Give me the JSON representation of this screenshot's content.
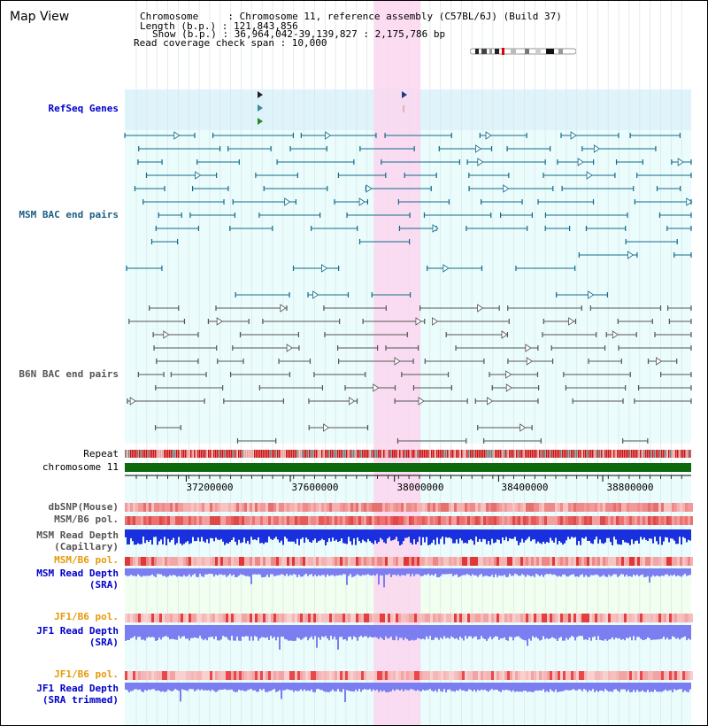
{
  "view": {
    "title": "Map View",
    "info_lines": [
      "Chromosome     : Chromosome 11, reference assembly (C57BL/6J) (Build 37)",
      "Length (b.p.) : 121,843,856",
      "Show (b.p.) : 36,964,042-39,139,827 : 2,175,786 bp",
      "Read coverage check span : 10,000"
    ]
  },
  "tracks": {
    "refseq": "RefSeq Genes",
    "msm_bac": "MSM BAC end pairs",
    "b6n_bac": "B6N BAC end pairs",
    "repeat": "Repeat",
    "chromosome": "chromosome 11",
    "dbsnp": "dbSNP(Mouse)",
    "msm_b6_pol": "MSM/B6 pol.",
    "msm_read_depth": "MSM Read Depth",
    "capillary": "(Capillary)",
    "msm_b6_pol_2": "MSM/B6 pol.",
    "msm_read_depth_sra": "MSM Read Depth",
    "sra": "(SRA)",
    "jf1_b6_pol": "JF1/B6 pol.",
    "jf1_read_depth": "JF1 Read Depth",
    "sra_2": "(SRA)",
    "jf1_b6_pol_2": "JF1/B6 pol.",
    "jf1_read_depth_trimmed": "JF1 Read Depth",
    "sra_trimmed": "(SRA trimmed)"
  },
  "axis": {
    "range": [
      36964042,
      39139827
    ],
    "ticks": [
      "37200000",
      "37600000",
      "38000000",
      "38400000",
      "38800000"
    ]
  },
  "highlight": {
    "start": 37920000,
    "end": 38100000
  },
  "colors": {
    "refseq_bg": "#dff3fb",
    "lane_bg": "#eafcfc",
    "depth_bg": "#f0fff0",
    "highlight": "#fbd6ee",
    "msm_pair": "#126a8a",
    "b6n_pair": "#555555",
    "repeat_red": "#cc1111",
    "chromosome_green": "#0c6a0c",
    "capillary_blue": "#1a2fdd",
    "sra_blue": "#7b7ef0",
    "label_blue": "#0000cc",
    "label_teal": "#1a5e84",
    "label_gray": "#555555",
    "label_orange": "#e69a0a"
  }
}
